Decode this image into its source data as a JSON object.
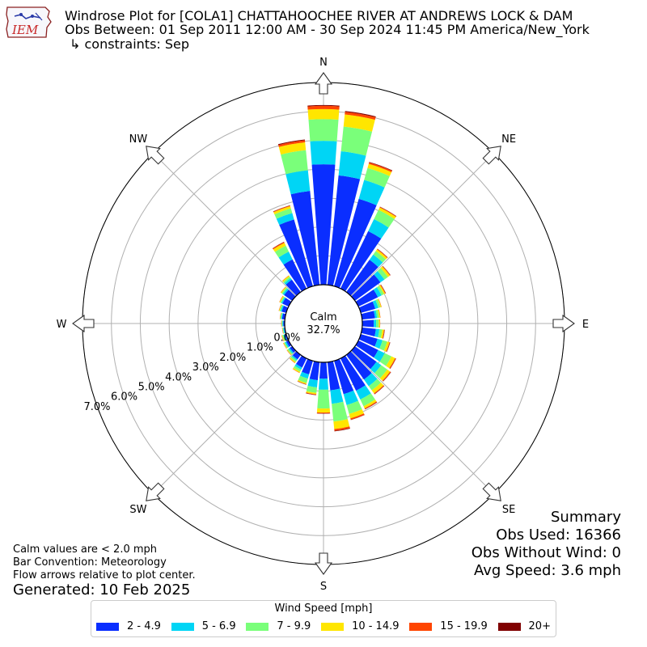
{
  "header": {
    "logo_text": "IEM",
    "title_line1": "Windrose Plot for [COLA1] CHATTAHOOCHEE RIVER  AT ANDREWS LOCK & DAM",
    "title_line2": "Obs Between: 01 Sep 2011 12:00 AM - 30 Sep 2024 11:45 PM America/New_York",
    "title_line3": "↳ constraints: Sep"
  },
  "notes": {
    "calm_values": "Calm values are < 2.0 mph",
    "bar_convention": "Bar Convention: Meteorology",
    "flow_arrows": "Flow arrows relative to plot center.",
    "generated": "Generated: 10 Feb 2025"
  },
  "summary": {
    "heading": "Summary",
    "obs_used": "Obs Used: 16366",
    "obs_without_wind": "Obs Without Wind: 0",
    "avg_speed": "Avg Speed: 3.6 mph"
  },
  "legend": {
    "title": "Wind Speed [mph]"
  },
  "chart_data": {
    "type": "windrose",
    "calm_label": "Calm",
    "calm_value": "32.7%",
    "direction_labels": [
      "N",
      "NE",
      "E",
      "SE",
      "S",
      "SW",
      "W",
      "NW"
    ],
    "radial_ticks": [
      "0.0%",
      "1.0%",
      "2.0%",
      "3.0%",
      "4.0%",
      "5.0%",
      "6.0%",
      "7.0%"
    ],
    "radial_max": 7.0,
    "bins": [
      {
        "name": "2 - 4.9",
        "color": "#0a2eff"
      },
      {
        "name": "5 - 6.9",
        "color": "#00d5f5"
      },
      {
        "name": "7 - 9.9",
        "color": "#7aff7a"
      },
      {
        "name": "10 - 14.9",
        "color": "#ffe600"
      },
      {
        "name": "15 - 19.9",
        "color": "#ff4500"
      },
      {
        "name": "20+",
        "color": "#800000"
      }
    ],
    "direction_deg": [
      0,
      10,
      20,
      30,
      40,
      50,
      60,
      70,
      80,
      90,
      100,
      110,
      120,
      130,
      140,
      150,
      160,
      170,
      180,
      190,
      200,
      210,
      220,
      230,
      240,
      250,
      260,
      270,
      280,
      290,
      300,
      310,
      320,
      330,
      340,
      350
    ],
    "cumulative_percent": [
      [
        4.17,
        4.98,
        5.73,
        6.08,
        6.19,
        6.22
      ],
      [
        3.81,
        4.65,
        5.51,
        5.93,
        6.02,
        6.05
      ],
      [
        3.14,
        3.82,
        4.25,
        4.4,
        4.45,
        4.47
      ],
      [
        2.21,
        2.67,
        3.03,
        3.12,
        3.14,
        3.15
      ],
      [
        1.38,
        1.6,
        1.75,
        1.82,
        1.84,
        1.85
      ],
      [
        1.09,
        1.26,
        1.41,
        1.49,
        1.51,
        1.52
      ],
      [
        0.75,
        0.89,
        0.98,
        1.03,
        1.05,
        1.06
      ],
      [
        0.52,
        0.63,
        0.71,
        0.74,
        0.75,
        0.75
      ],
      [
        0.45,
        0.52,
        0.59,
        0.63,
        0.64,
        0.64
      ],
      [
        0.4,
        0.48,
        0.57,
        0.61,
        0.62,
        0.62
      ],
      [
        0.48,
        0.6,
        0.7,
        0.76,
        0.78,
        0.79
      ],
      [
        0.6,
        0.78,
        0.95,
        1.03,
        1.05,
        1.06
      ],
      [
        0.76,
        1.01,
        1.27,
        1.41,
        1.44,
        1.45
      ],
      [
        0.92,
        1.12,
        1.38,
        1.5,
        1.53,
        1.54
      ],
      [
        1.05,
        1.33,
        1.51,
        1.64,
        1.67,
        1.68
      ],
      [
        1.24,
        1.58,
        1.84,
        1.92,
        1.95,
        1.96
      ],
      [
        1.2,
        1.59,
        1.91,
        2.07,
        2.12,
        2.13
      ],
      [
        0.98,
        1.45,
        2.07,
        2.33,
        2.39,
        2.41
      ],
      [
        0.57,
        0.95,
        1.6,
        1.74,
        1.77,
        1.78
      ],
      [
        0.63,
        0.88,
        1.07,
        1.12,
        1.14,
        1.15
      ],
      [
        0.49,
        0.64,
        0.8,
        0.84,
        0.85,
        0.86
      ],
      [
        0.35,
        0.43,
        0.51,
        0.55,
        0.56,
        0.56
      ],
      [
        0.19,
        0.24,
        0.3,
        0.34,
        0.35,
        0.35
      ],
      [
        0.1,
        0.15,
        0.2,
        0.22,
        0.23,
        0.23
      ],
      [
        0.09,
        0.14,
        0.18,
        0.2,
        0.21,
        0.21
      ],
      [
        0.05,
        0.1,
        0.14,
        0.16,
        0.17,
        0.17
      ],
      [
        0.03,
        0.06,
        0.08,
        0.09,
        0.1,
        0.1
      ],
      [
        0.05,
        0.08,
        0.1,
        0.11,
        0.12,
        0.12
      ],
      [
        0.1,
        0.13,
        0.16,
        0.17,
        0.18,
        0.18
      ],
      [
        0.16,
        0.2,
        0.24,
        0.26,
        0.27,
        0.27
      ],
      [
        0.24,
        0.28,
        0.32,
        0.35,
        0.36,
        0.36
      ],
      [
        0.34,
        0.4,
        0.45,
        0.48,
        0.49,
        0.49
      ],
      [
        0.53,
        0.6,
        0.66,
        0.7,
        0.71,
        0.71
      ],
      [
        1.12,
        1.42,
        1.65,
        1.76,
        1.79,
        1.8
      ],
      [
        2.4,
        2.63,
        2.8,
        2.88,
        2.9,
        2.91
      ],
      [
        3.27,
        3.99,
        4.69,
        4.96,
        5.03,
        5.06
      ]
    ]
  }
}
